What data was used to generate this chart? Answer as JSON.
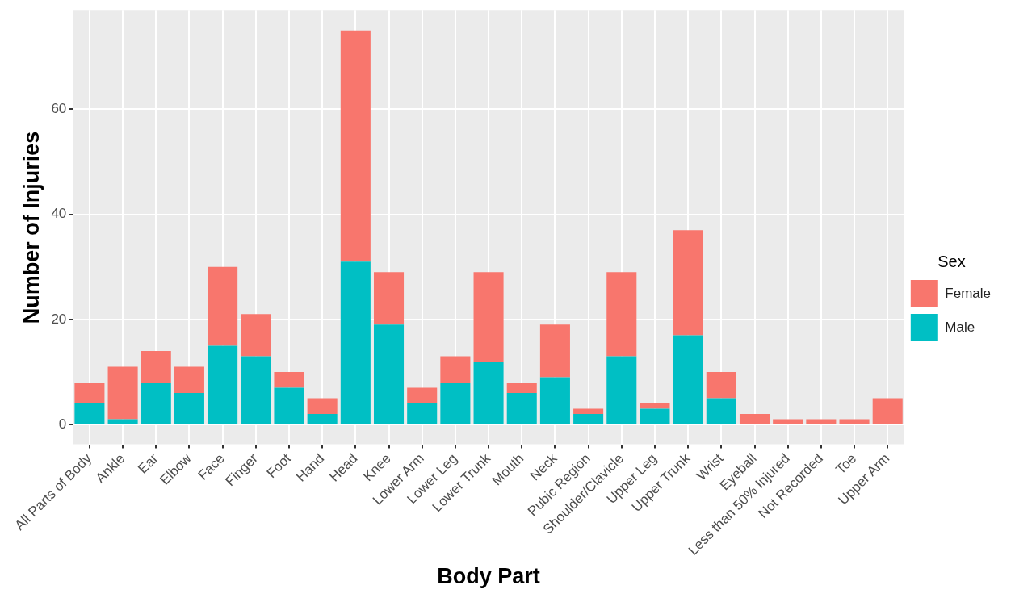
{
  "chart_data": {
    "type": "bar",
    "stacked": true,
    "xlabel": "Body Part",
    "ylabel": "Number of Injuries",
    "legend_title": "Sex",
    "legend": "right",
    "grid": true,
    "categories": [
      "All Parts of Body",
      "Ankle",
      "Ear",
      "Elbow",
      "Face",
      "Finger",
      "Foot",
      "Hand",
      "Head",
      "Knee",
      "Lower Arm",
      "Lower Leg",
      "Lower Trunk",
      "Mouth",
      "Neck",
      "Pubic Region",
      "Shoulder/Clavicle",
      "Upper Leg",
      "Upper Trunk",
      "Wrist",
      "Eyeball",
      "Less than 50% Injured",
      "Not Recorded",
      "Toe",
      "Upper Arm"
    ],
    "series": [
      {
        "name": "Male",
        "color": "#00bfc4",
        "values": [
          4,
          1,
          8,
          6,
          15,
          13,
          7,
          2,
          31,
          19,
          4,
          8,
          12,
          6,
          9,
          2,
          13,
          3,
          17,
          5,
          0,
          0,
          0,
          0,
          0
        ]
      },
      {
        "name": "Female",
        "color": "#f8766d",
        "values": [
          4,
          10,
          6,
          5,
          15,
          8,
          3,
          3,
          44,
          10,
          3,
          5,
          17,
          2,
          10,
          1,
          16,
          1,
          20,
          5,
          2,
          1,
          1,
          1,
          5
        ]
      }
    ],
    "ylim": [
      -3.75,
      78.75
    ],
    "yticks": [
      0,
      20,
      40,
      60
    ]
  }
}
